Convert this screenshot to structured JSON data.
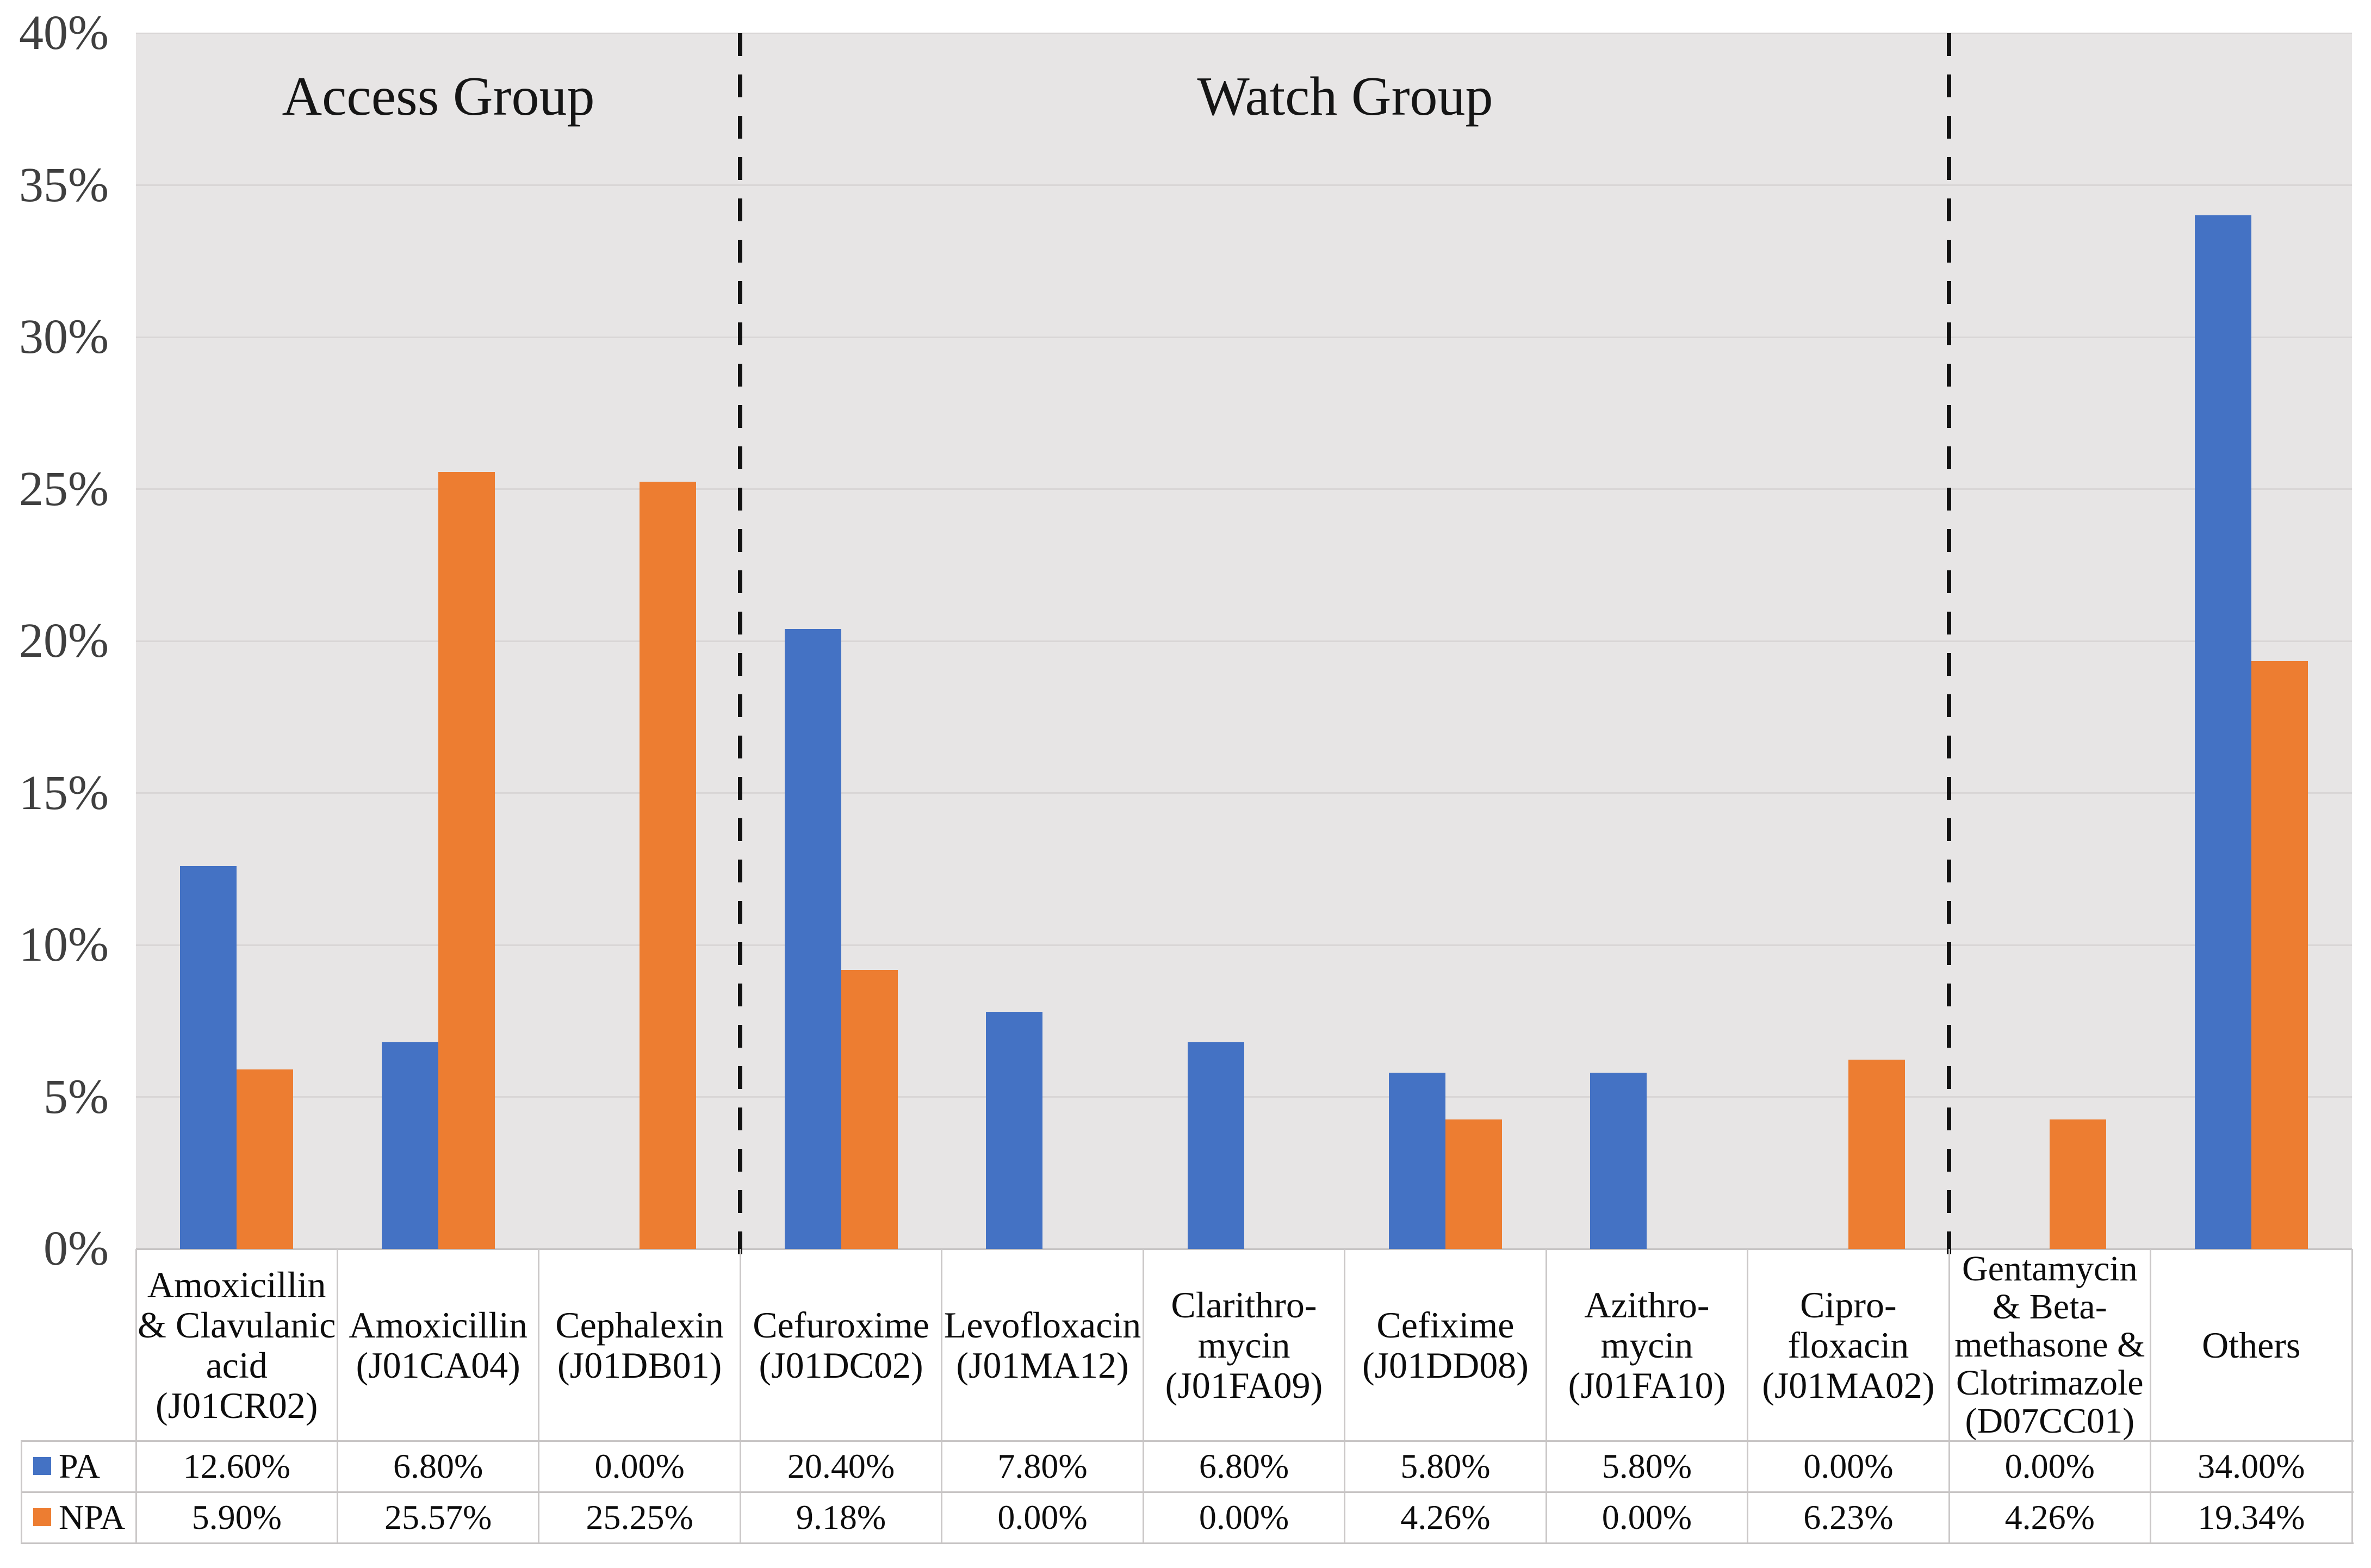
{
  "chart_data": {
    "type": "bar",
    "ylim": [
      0,
      40
    ],
    "ytick_step": 5,
    "ytick_labels": [
      "0%",
      "5%",
      "10%",
      "15%",
      "20%",
      "25%",
      "30%",
      "35%",
      "40%"
    ],
    "grid": true,
    "legend_position": "table-left",
    "colors": {
      "pa_blue": "#4472C4",
      "npa_orange": "#ED7D31",
      "plot_background": "#E7E5E5",
      "gridline": "#D9D6D6",
      "table_border": "#C7C4C4",
      "separator_dash": "#121212"
    },
    "groups": [
      {
        "label": "Access Group",
        "start_index": 0,
        "end_index": 2
      },
      {
        "label": "Watch Group",
        "start_index": 3,
        "end_index": 8
      },
      {
        "label": "",
        "start_index": 9,
        "end_index": 10
      }
    ],
    "categories": [
      {
        "name": "Amoxicillin & Clavulanic acid (J01CR02)",
        "label_lines": [
          "Amoxicillin",
          "& Clavulanic",
          "acid",
          "(J01CR02)"
        ]
      },
      {
        "name": "Amoxicillin (J01CA04)",
        "label_lines": [
          "Amoxicillin",
          "(J01CA04)"
        ]
      },
      {
        "name": "Cephalexin (J01DB01)",
        "label_lines": [
          "Cephalexin",
          "(J01DB01)"
        ]
      },
      {
        "name": "Cefuroxime (J01DC02)",
        "label_lines": [
          "Cefuroxime",
          "(J01DC02)"
        ]
      },
      {
        "name": "Levofloxacin (J01MA12)",
        "label_lines": [
          "Levofloxacin",
          "(J01MA12)"
        ]
      },
      {
        "name": "Clarithromycin (J01FA09)",
        "label_lines": [
          "Clarithro-",
          "mycin",
          "(J01FA09)"
        ]
      },
      {
        "name": "Cefixime (J01DD08)",
        "label_lines": [
          "Cefixime",
          "(J01DD08)"
        ]
      },
      {
        "name": "Azithromycin (J01FA10)",
        "label_lines": [
          "Azithro-",
          "mycin",
          "(J01FA10)"
        ]
      },
      {
        "name": "Ciprofloxacin (J01MA02)",
        "label_lines": [
          "Cipro-",
          "floxacin",
          "(J01MA02)"
        ]
      },
      {
        "name": "Gentamycin & Betamethasone & Clotrimazole (D07CC01)",
        "label_lines": [
          "Gentamycin",
          "& Beta-",
          "methasone &",
          "Clotrimazole",
          "(D07CC01)"
        ]
      },
      {
        "name": "Others",
        "label_lines": [
          "Others"
        ]
      }
    ],
    "series": [
      {
        "name": "PA",
        "color": "#4472C4",
        "values": [
          12.6,
          6.8,
          0.0,
          20.4,
          7.8,
          6.8,
          5.8,
          5.8,
          0.0,
          0.0,
          34.0
        ],
        "formatted": [
          "12.60%",
          "6.80%",
          "0.00%",
          "20.40%",
          "7.80%",
          "6.80%",
          "5.80%",
          "5.80%",
          "0.00%",
          "0.00%",
          "34.00%"
        ]
      },
      {
        "name": "NPA",
        "color": "#ED7D31",
        "values": [
          5.9,
          25.57,
          25.25,
          9.18,
          0.0,
          0.0,
          4.26,
          0.0,
          6.23,
          4.26,
          19.34
        ],
        "formatted": [
          "5.90%",
          "25.57%",
          "25.25%",
          "9.18%",
          "0.00%",
          "0.00%",
          "4.26%",
          "0.00%",
          "6.23%",
          "4.26%",
          "19.34%"
        ]
      }
    ]
  }
}
